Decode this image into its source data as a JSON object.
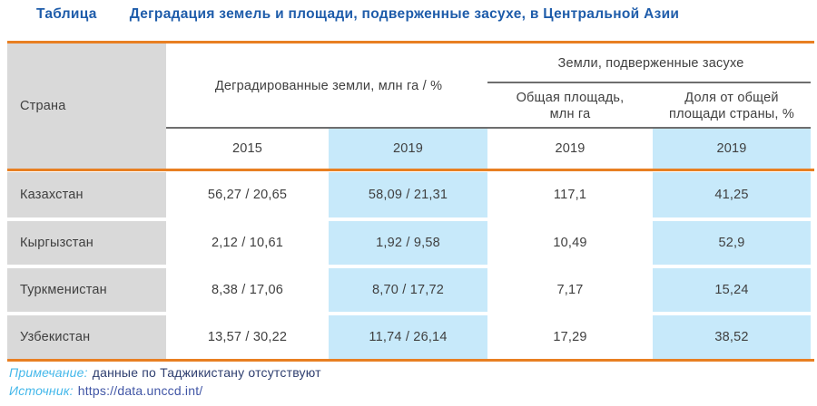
{
  "title": {
    "label": "Таблица",
    "text": "Деградация земель и площади, подверженные засухе, в Центральной Азии"
  },
  "table": {
    "country_header": "Страна",
    "degraded_header": "Деградированные земли, млн га / %",
    "drought_header": "Земли, подверженные засухе",
    "drought_total_lines": [
      "Общая площадь,",
      "млн га"
    ],
    "drought_share_lines": [
      "Доля от общей",
      "площади страны, %"
    ],
    "years": [
      "2015",
      "2019",
      "2019",
      "2019"
    ],
    "rows": [
      {
        "country": "Казахстан",
        "degraded_2015": "56,27 / 20,65",
        "degraded_2019": "58,09 / 21,31",
        "drought_area_2019": "117,1",
        "drought_share_2019": "41,25"
      },
      {
        "country": "Кыргызстан",
        "degraded_2015": "2,12 / 10,61",
        "degraded_2019": "1,92 / 9,58",
        "drought_area_2019": "10,49",
        "drought_share_2019": "52,9"
      },
      {
        "country": "Туркменистан",
        "degraded_2015": "8,38 / 17,06",
        "degraded_2019": "8,70 / 17,72",
        "drought_area_2019": "7,17",
        "drought_share_2019": "15,24"
      },
      {
        "country": "Узбекистан",
        "degraded_2015": "13,57 / 30,22",
        "degraded_2019": "11,74 / 26,14",
        "drought_area_2019": "17,29",
        "drought_share_2019": "38,52"
      }
    ]
  },
  "footnotes": {
    "note_label": "Примечание:",
    "note_text": "данные по Таджикистану отсутствуют",
    "source_label": "Источник:",
    "source_text": "https://data.unccd.int/"
  },
  "colors": {
    "title_blue": "#1e5caa",
    "accent_orange": "#e87f22",
    "header_gray_fill": "#d9d9d9",
    "highlight_blue_fill": "#c7e9fa",
    "table_text": "#3f3f3f",
    "divider_gray": "#6e6e6e",
    "note_label_blue": "#45b8ea",
    "note_text_navy": "#2e3e6f",
    "link_blue": "#4156a6"
  }
}
